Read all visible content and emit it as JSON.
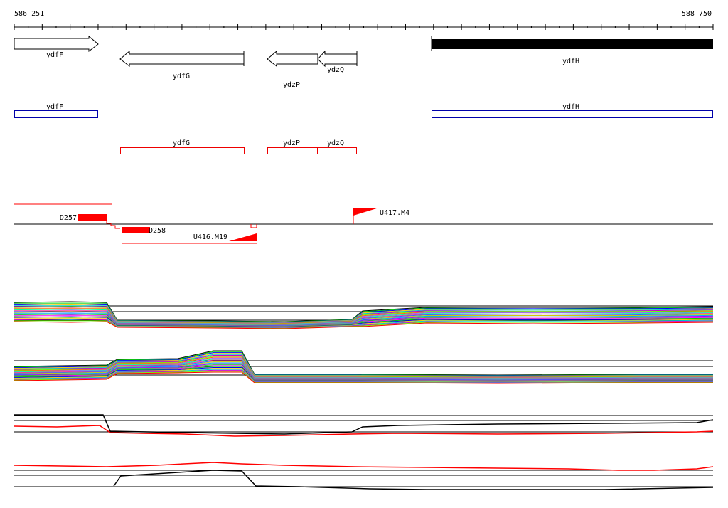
{
  "ruler": {
    "start_label": "586 251",
    "end_label": "588 750"
  },
  "genes": [
    {
      "name": "ydfF",
      "strand": "+"
    },
    {
      "name": "ydfG",
      "strand": "-"
    },
    {
      "name": "ydzP",
      "strand": "-"
    },
    {
      "name": "ydzQ",
      "strand": "-"
    },
    {
      "name": "ydfH",
      "strand": "filled"
    }
  ],
  "annotations_blue": [
    "ydfF",
    "ydfH"
  ],
  "annotations_red": [
    "ydfG",
    "ydzP",
    "ydzQ"
  ],
  "features": [
    {
      "label": "D257"
    },
    {
      "label": "D258"
    },
    {
      "label": "U416.M19"
    },
    {
      "label": "U417.M4"
    }
  ],
  "colors": {
    "gene_outline": "#000000",
    "blue_box": "#0000aa",
    "red_box": "#ee0000",
    "feature_red": "#ff0000",
    "axis": "#000000"
  }
}
